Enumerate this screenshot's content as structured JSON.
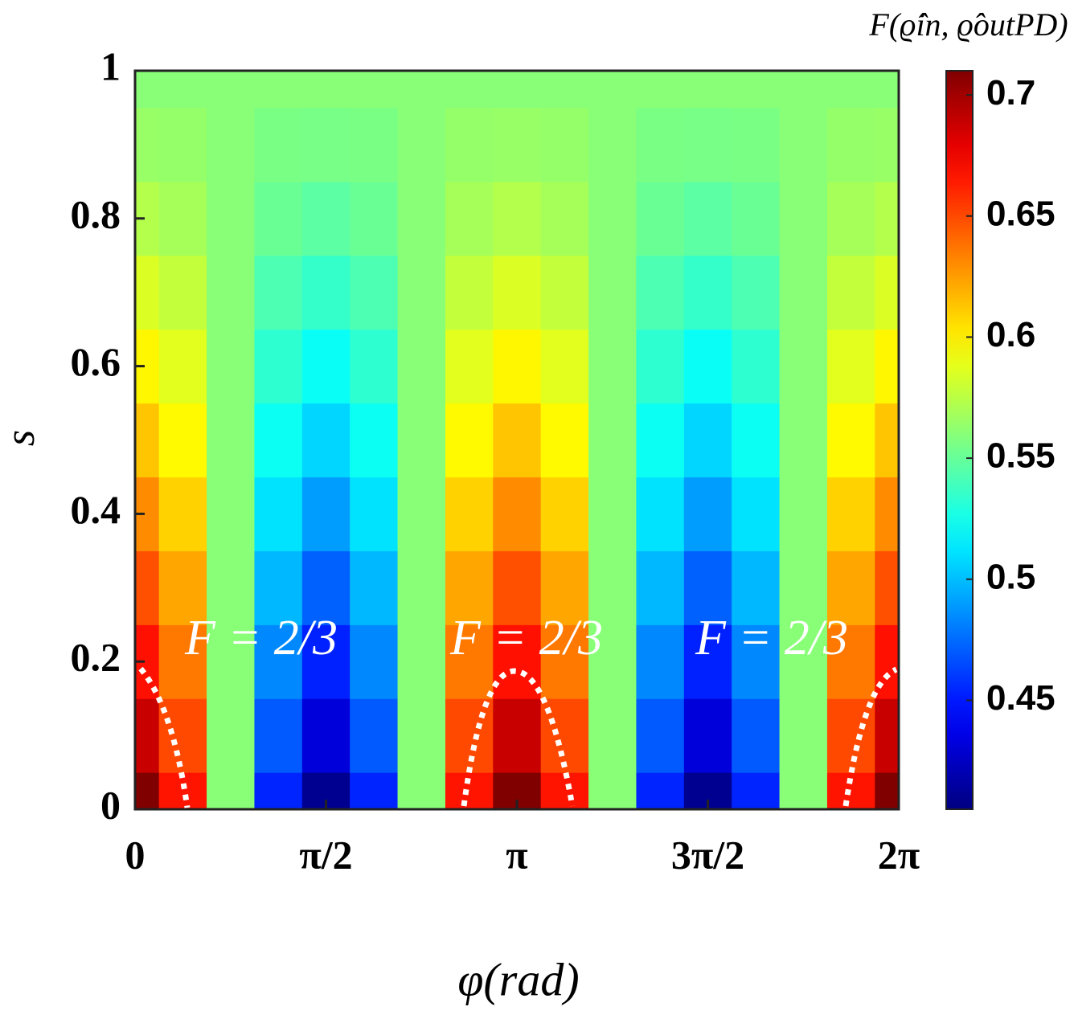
{
  "chart_data": {
    "type": "contour",
    "x_label": "φ(rad)",
    "y_label": "s",
    "colorbar_label": "F(ϱ̂in, ϱ̂outPD)",
    "annotations": [
      "F = 2/3",
      "F = 2/3",
      "F = 2/3"
    ],
    "colormap": "jet",
    "x": [
      0,
      0.3927,
      0.7854,
      1.1781,
      1.5708,
      1.9635,
      2.3562,
      2.7489,
      3.1416,
      3.5343,
      3.927,
      4.3197,
      4.7124,
      5.1051,
      5.4978,
      5.8905,
      6.2832
    ],
    "y": [
      0,
      0.1,
      0.2,
      0.3,
      0.4,
      0.5,
      0.6,
      0.7,
      0.8,
      0.9,
      1
    ],
    "z": [
      [
        0.71,
        0.666,
        0.56,
        0.454,
        0.41,
        0.454,
        0.56,
        0.666,
        0.71,
        0.666,
        0.56,
        0.454,
        0.41,
        0.454,
        0.56,
        0.666,
        0.71
      ],
      [
        0.688,
        0.65,
        0.56,
        0.47,
        0.432,
        0.47,
        0.56,
        0.65,
        0.688,
        0.65,
        0.56,
        0.47,
        0.432,
        0.47,
        0.56,
        0.65,
        0.688
      ],
      [
        0.667,
        0.636,
        0.56,
        0.484,
        0.453,
        0.484,
        0.56,
        0.636,
        0.667,
        0.636,
        0.56,
        0.484,
        0.453,
        0.484,
        0.56,
        0.636,
        0.667
      ],
      [
        0.648,
        0.622,
        0.56,
        0.498,
        0.472,
        0.498,
        0.56,
        0.622,
        0.648,
        0.622,
        0.56,
        0.498,
        0.472,
        0.498,
        0.56,
        0.622,
        0.648
      ],
      [
        0.63,
        0.609,
        0.56,
        0.511,
        0.49,
        0.511,
        0.56,
        0.609,
        0.63,
        0.609,
        0.56,
        0.511,
        0.49,
        0.511,
        0.56,
        0.609,
        0.63
      ],
      [
        0.613,
        0.597,
        0.56,
        0.523,
        0.507,
        0.523,
        0.56,
        0.597,
        0.613,
        0.597,
        0.56,
        0.523,
        0.507,
        0.523,
        0.56,
        0.597,
        0.613
      ],
      [
        0.598,
        0.587,
        0.56,
        0.533,
        0.522,
        0.533,
        0.56,
        0.587,
        0.598,
        0.587,
        0.56,
        0.533,
        0.522,
        0.533,
        0.56,
        0.587,
        0.598
      ],
      [
        0.585,
        0.578,
        0.56,
        0.542,
        0.535,
        0.542,
        0.56,
        0.578,
        0.585,
        0.578,
        0.56,
        0.542,
        0.535,
        0.542,
        0.56,
        0.578,
        0.585
      ],
      [
        0.573,
        0.569,
        0.56,
        0.551,
        0.547,
        0.551,
        0.56,
        0.569,
        0.573,
        0.569,
        0.56,
        0.551,
        0.547,
        0.551,
        0.56,
        0.569,
        0.573
      ],
      [
        0.565,
        0.564,
        0.56,
        0.556,
        0.555,
        0.556,
        0.56,
        0.564,
        0.565,
        0.564,
        0.56,
        0.556,
        0.555,
        0.556,
        0.56,
        0.564,
        0.565
      ],
      [
        0.56,
        0.56,
        0.56,
        0.56,
        0.56,
        0.56,
        0.56,
        0.56,
        0.56,
        0.56,
        0.56,
        0.56,
        0.56,
        0.56,
        0.56,
        0.56,
        0.56
      ]
    ],
    "xlim": [
      0,
      6.2832
    ],
    "ylim": [
      0,
      1
    ],
    "xticks": [
      0,
      {
        "value": 1.5708,
        "label": "π/2"
      },
      {
        "value": 3.1416,
        "label": "π"
      },
      {
        "value": 4.7124,
        "label": "3π/2"
      },
      {
        "value": 6.2832,
        "label": "2π"
      }
    ],
    "yticks": [
      0,
      0.2,
      0.4,
      0.6,
      0.8,
      1
    ],
    "clim": [
      0.405,
      0.71
    ],
    "cticks": [
      0.45,
      0.5,
      0.55,
      0.6,
      0.65,
      0.7
    ]
  }
}
